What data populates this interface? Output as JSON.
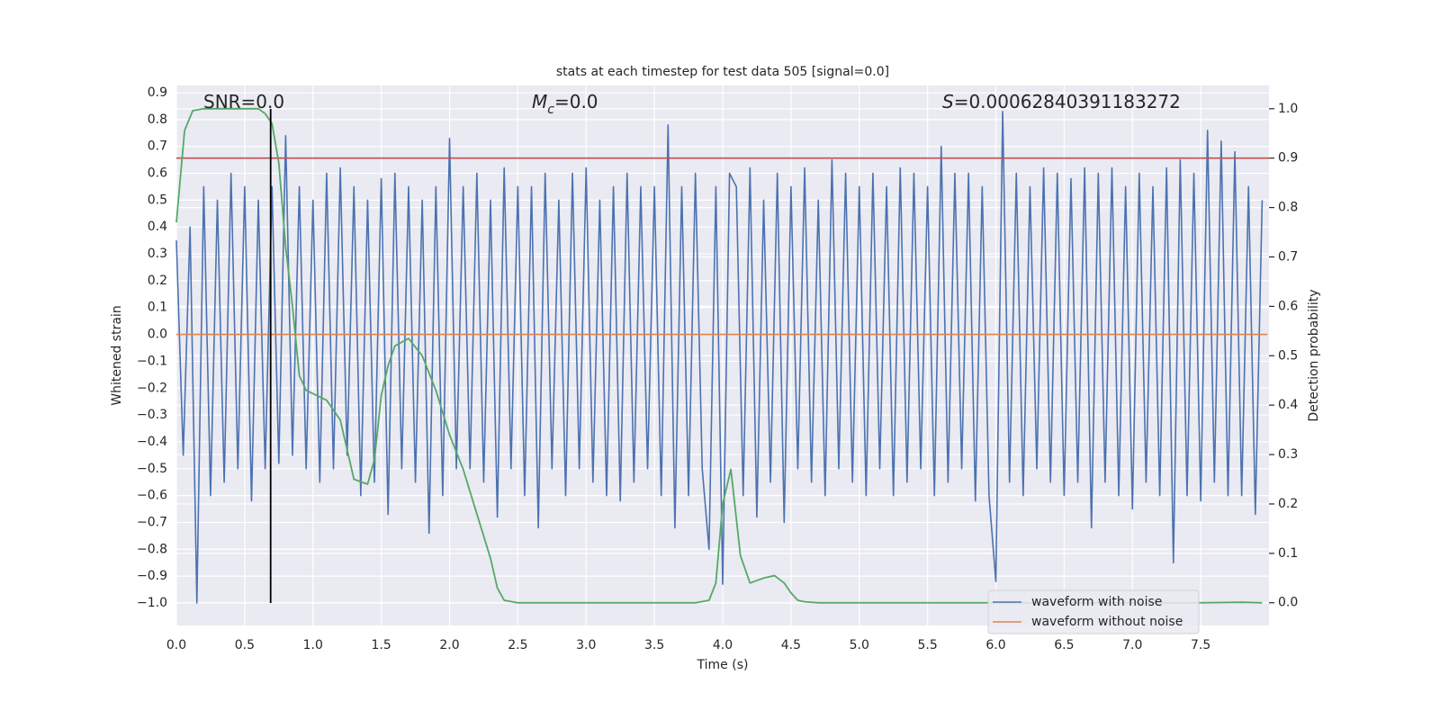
{
  "chart_data": {
    "type": "line",
    "title": "stats at each timestep for test data 505 [signal=0.0]",
    "xlabel": "Time (s)",
    "ylabel": "Whitened strain",
    "y2label": "Detection probability",
    "background": "#eaeaf2",
    "grid": true,
    "legend": "lower right",
    "xlim": [
      0,
      8
    ],
    "ylim": [
      -1.084,
      0.927
    ],
    "y2lim": [
      -0.046,
      1.047
    ],
    "xticks": [
      {
        "value": 0,
        "label": "0.0"
      },
      0.5,
      {
        "value": 1,
        "label": "1.0"
      },
      1.5,
      {
        "value": 2,
        "label": "2.0"
      },
      2.5,
      {
        "value": 3,
        "label": "3.0"
      },
      3.5,
      {
        "value": 4,
        "label": "4.0"
      },
      4.5,
      {
        "value": 5,
        "label": "5.0"
      },
      5.5,
      {
        "value": 6,
        "label": "6.0"
      },
      6.5,
      {
        "value": 7,
        "label": "7.0"
      },
      7.5
    ],
    "yticks": [
      {
        "value": -1.0,
        "label": "−1.0"
      },
      {
        "value": -0.9,
        "label": "−0.9"
      },
      {
        "value": -0.8,
        "label": "−0.8"
      },
      {
        "value": -0.7,
        "label": "−0.7"
      },
      {
        "value": -0.6,
        "label": "−0.6"
      },
      {
        "value": -0.5,
        "label": "−0.5"
      },
      {
        "value": -0.4,
        "label": "−0.4"
      },
      {
        "value": -0.3,
        "label": "−0.3"
      },
      {
        "value": -0.2,
        "label": "−0.2"
      },
      {
        "value": -0.1,
        "label": "−0.1"
      },
      {
        "value": 0,
        "label": "0.0"
      },
      0.1,
      0.2,
      0.3,
      0.4,
      0.5,
      0.6,
      0.7,
      0.8,
      0.9
    ],
    "y2ticks": [
      {
        "value": 0,
        "label": "0.0"
      },
      0.1,
      0.2,
      0.3,
      0.4,
      0.5,
      0.6,
      0.7,
      0.8,
      0.9,
      {
        "value": 1,
        "label": "1.0"
      }
    ],
    "annotations": [
      [
        {
          "text": "SNR=0.0"
        }
      ],
      [
        {
          "text": "M",
          "style": "italic"
        },
        {
          "text": "c",
          "style": "sub"
        },
        {
          "text": "=0.0"
        }
      ],
      [
        {
          "text": "S",
          "style": "italic"
        },
        {
          "text": "=0.00062840391183272"
        }
      ]
    ],
    "x": [
      0,
      0.05,
      0.1,
      0.15,
      0.2,
      0.25,
      0.3,
      0.35,
      0.4,
      0.45,
      0.5,
      0.55,
      0.6,
      0.65,
      0.7,
      0.75,
      0.8,
      0.85,
      0.9,
      0.95,
      1,
      1.05,
      1.1,
      1.15,
      1.2,
      1.25,
      1.3,
      1.35,
      1.4,
      1.45,
      1.5,
      1.55,
      1.6,
      1.65,
      1.7,
      1.75,
      1.8,
      1.85,
      1.9,
      1.95,
      2,
      2.05,
      2.1,
      2.15,
      2.2,
      2.25,
      2.3,
      2.35,
      2.4,
      2.45,
      2.5,
      2.55,
      2.6,
      2.65,
      2.7,
      2.75,
      2.8,
      2.85,
      2.9,
      2.95,
      3,
      3.05,
      3.1,
      3.15,
      3.2,
      3.25,
      3.3,
      3.35,
      3.4,
      3.45,
      3.5,
      3.55,
      3.6,
      3.65,
      3.7,
      3.75,
      3.8,
      3.85,
      3.9,
      3.95,
      4,
      4.05,
      4.1,
      4.15,
      4.2,
      4.25,
      4.3,
      4.35,
      4.4,
      4.45,
      4.5,
      4.55,
      4.6,
      4.65,
      4.7,
      4.75,
      4.8,
      4.85,
      4.9,
      4.95,
      5,
      5.05,
      5.1,
      5.15,
      5.2,
      5.25,
      5.3,
      5.35,
      5.4,
      5.45,
      5.5,
      5.55,
      5.6,
      5.65,
      5.7,
      5.75,
      5.8,
      5.85,
      5.9,
      5.95,
      6,
      6.05,
      6.1,
      6.15,
      6.2,
      6.25,
      6.3,
      6.35,
      6.4,
      6.45,
      6.5,
      6.55,
      6.6,
      6.65,
      6.7,
      6.75,
      6.8,
      6.85,
      6.9,
      6.95,
      7,
      7.05,
      7.1,
      7.15,
      7.2,
      7.25,
      7.3,
      7.35,
      7.4,
      7.45,
      7.5,
      7.55,
      7.6,
      7.65,
      7.7,
      7.75,
      7.8,
      7.85,
      7.9,
      7.95
    ],
    "series": [
      {
        "name": "waveform with noise",
        "color": "#4c72b0",
        "values": [
          0.35,
          -0.45,
          0.4,
          -1.0,
          0.55,
          -0.6,
          0.5,
          -0.55,
          0.6,
          -0.5,
          0.55,
          -0.62,
          0.5,
          -0.5,
          0.55,
          -0.48,
          0.74,
          -0.45,
          0.55,
          -0.5,
          0.5,
          -0.55,
          0.6,
          -0.5,
          0.62,
          -0.45,
          0.55,
          -0.6,
          0.5,
          -0.55,
          0.58,
          -0.67,
          0.6,
          -0.5,
          0.55,
          -0.55,
          0.5,
          -0.74,
          0.55,
          -0.6,
          0.73,
          -0.5,
          0.55,
          -0.5,
          0.6,
          -0.55,
          0.5,
          -0.68,
          0.62,
          -0.5,
          0.55,
          -0.6,
          0.55,
          -0.72,
          0.6,
          -0.5,
          0.5,
          -0.6,
          0.6,
          -0.5,
          0.62,
          -0.55,
          0.5,
          -0.6,
          0.55,
          -0.62,
          0.6,
          -0.55,
          0.55,
          -0.5,
          0.55,
          -0.6,
          0.78,
          -0.72,
          0.55,
          -0.6,
          0.6,
          -0.5,
          -0.8,
          0.55,
          -0.93,
          0.6,
          0.55,
          -0.6,
          0.62,
          -0.68,
          0.5,
          -0.55,
          0.6,
          -0.7,
          0.55,
          -0.5,
          0.62,
          -0.55,
          0.5,
          -0.6,
          0.65,
          -0.5,
          0.6,
          -0.55,
          0.55,
          -0.6,
          0.6,
          -0.5,
          0.55,
          -0.6,
          0.62,
          -0.55,
          0.6,
          -0.5,
          0.55,
          -0.6,
          0.7,
          -0.55,
          0.6,
          -0.5,
          0.6,
          -0.62,
          0.55,
          -0.6,
          -0.92,
          0.83,
          -0.55,
          0.6,
          -0.6,
          0.55,
          -0.5,
          0.62,
          -0.55,
          0.6,
          -0.6,
          0.58,
          -0.55,
          0.62,
          -0.72,
          0.6,
          -0.55,
          0.62,
          -0.6,
          0.55,
          -0.65,
          0.6,
          -0.55,
          0.55,
          -0.6,
          0.62,
          -0.85,
          0.65,
          -0.6,
          0.6,
          -0.62,
          0.76,
          -0.55,
          0.72,
          -0.6,
          0.68,
          -0.6,
          0.55,
          -0.67,
          0.5
        ]
      },
      {
        "name": "waveform without noise",
        "color": "#dd8452",
        "x": [
          0,
          7.99
        ],
        "values": [
          0,
          0
        ]
      }
    ],
    "probability": {
      "color": "#55a868",
      "axis": "y2",
      "x": [
        0,
        0.06,
        0.12,
        0.2,
        0.3,
        0.4,
        0.5,
        0.6,
        0.65,
        0.7,
        0.75,
        0.8,
        0.85,
        0.9,
        0.95,
        1.1,
        1.2,
        1.3,
        1.4,
        1.45,
        1.5,
        1.55,
        1.6,
        1.7,
        1.8,
        1.9,
        2.0,
        2.1,
        2.2,
        2.3,
        2.35,
        2.4,
        2.5,
        3.0,
        3.5,
        3.8,
        3.9,
        3.95,
        4.0,
        4.06,
        4.13,
        4.2,
        4.3,
        4.38,
        4.45,
        4.5,
        4.55,
        4.6,
        4.7,
        5.5,
        7.5,
        7.8,
        7.95
      ],
      "values": [
        0.77,
        0.956,
        0.996,
        1.0,
        1.0,
        1.0,
        1.0,
        1.0,
        0.99,
        0.97,
        0.89,
        0.72,
        0.6,
        0.46,
        0.43,
        0.41,
        0.37,
        0.25,
        0.24,
        0.29,
        0.42,
        0.48,
        0.52,
        0.535,
        0.5,
        0.43,
        0.34,
        0.27,
        0.18,
        0.09,
        0.03,
        0.005,
        0,
        0,
        0,
        0,
        0.005,
        0.04,
        0.2,
        0.27,
        0.095,
        0.04,
        0.05,
        0.055,
        0.04,
        0.02,
        0.005,
        0.002,
        0,
        0,
        0,
        0.001,
        0
      ]
    },
    "threshold": {
      "value": 0.9,
      "axis": "y2",
      "color": "#c44e52"
    },
    "marker_line": {
      "x": 0.69,
      "yrange": [
        -1.0,
        0.84
      ],
      "color": "#000000"
    }
  }
}
